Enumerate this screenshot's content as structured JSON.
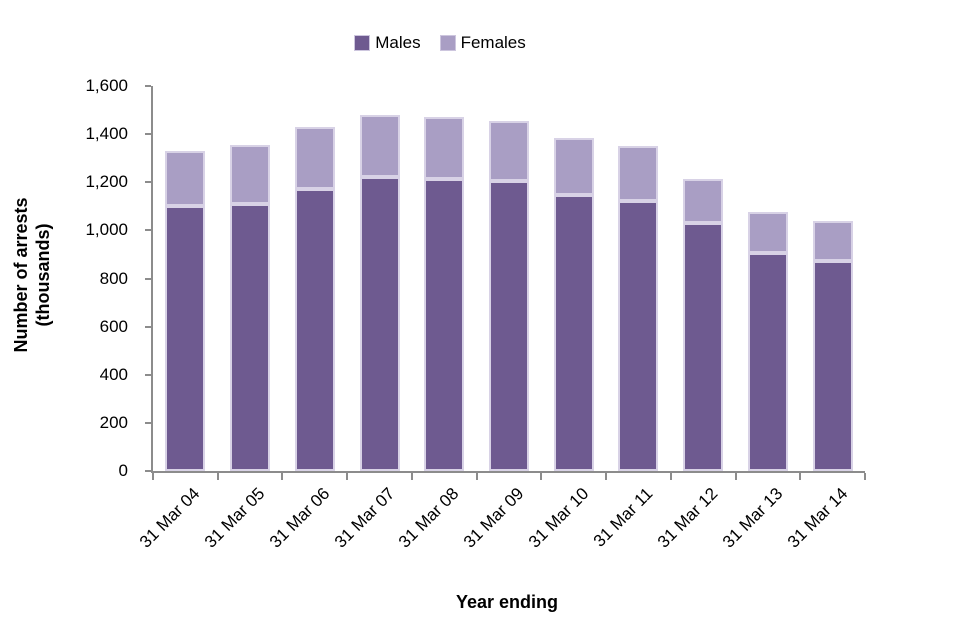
{
  "chart_data": {
    "type": "bar",
    "stacked": true,
    "title": "",
    "xlabel": "Year ending",
    "ylabel": "Number of arrests (thousands)",
    "ylabel_lines": [
      "Number of arrests",
      "(thousands)"
    ],
    "categories": [
      "31 Mar 04",
      "31 Mar 05",
      "31 Mar 06",
      "31 Mar 07",
      "31 Mar 08",
      "31 Mar 09",
      "31 Mar 10",
      "31 Mar 11",
      "31 Mar 12",
      "31 Mar 13",
      "31 Mar 14"
    ],
    "series": [
      {
        "name": "Males",
        "color": "#6e5a90",
        "values": [
          1103,
          1110,
          1174,
          1221,
          1212,
          1205,
          1148,
          1124,
          1031,
          908,
          872
        ]
      },
      {
        "name": "Females",
        "color": "#a99ec4",
        "values": [
          227,
          243,
          256,
          259,
          260,
          251,
          235,
          228,
          184,
          168,
          166
        ]
      }
    ],
    "ylim": [
      0,
      1600
    ],
    "ytick_step": 200,
    "y_tick_labels": [
      "0",
      "200",
      "400",
      "600",
      "800",
      "1,000",
      "1,200",
      "1,400",
      "1,600"
    ],
    "legend_position": "top",
    "grid": false,
    "colors": {
      "axis": "#8c8c8c",
      "bar_border": "#d8d2e6",
      "text": "#000000",
      "background": "#ffffff"
    }
  }
}
